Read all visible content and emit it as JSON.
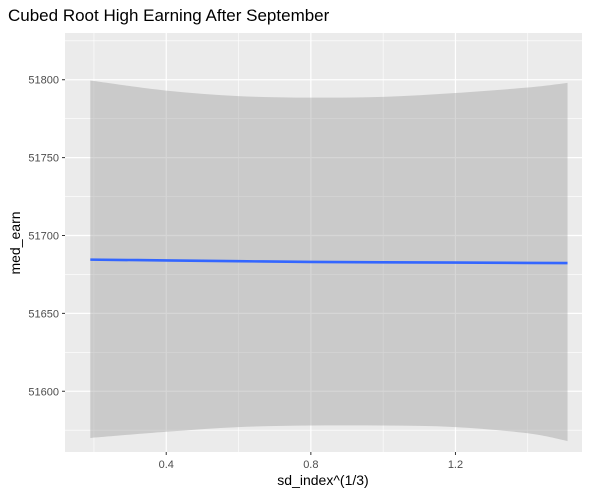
{
  "chart_data": {
    "type": "line",
    "title": "Cubed Root High Earning After September",
    "xlabel": "sd_index^(1/3)",
    "ylabel": "med_earn",
    "xlim": [
      0.12,
      1.55
    ],
    "ylim": [
      51561,
      51830
    ],
    "x_ticks": [
      0.4,
      0.8,
      1.2
    ],
    "x_tick_labels": [
      "0.4",
      "0.8",
      "1.2"
    ],
    "y_ticks": [
      51600,
      51650,
      51700,
      51750,
      51800
    ],
    "y_tick_labels": [
      "51600",
      "51650",
      "51700",
      "51750",
      "51800"
    ],
    "grid": true,
    "series": [
      {
        "x": [
          0.19,
          0.4,
          0.6,
          0.8,
          1.0,
          1.2,
          1.4,
          1.51
        ],
        "y": [
          51684.5,
          51684,
          51683.5,
          51683,
          51682.8,
          51682.6,
          51682.4,
          51682.3
        ],
        "ymin": [
          51570,
          51574,
          51577,
          51578,
          51578,
          51577,
          51573,
          51568
        ],
        "ymax": [
          51799.5,
          51793,
          51789.5,
          51788.5,
          51789,
          51791.5,
          51795,
          51798
        ]
      }
    ],
    "colors": {
      "line": "#3366FF",
      "ribbon": "#999999",
      "panel": "#EBEBEB",
      "grid": "#FFFFFF"
    }
  }
}
